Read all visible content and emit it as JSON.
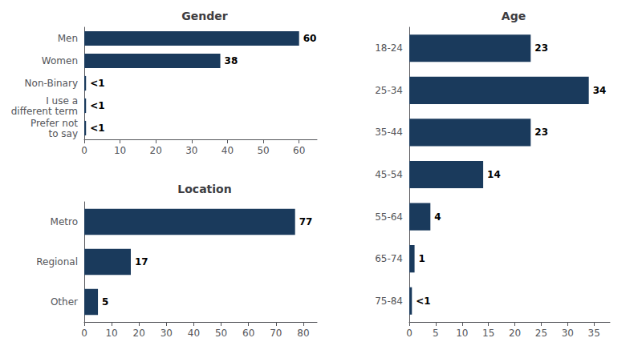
{
  "chart_data": [
    {
      "type": "bar",
      "orientation": "horizontal",
      "title": "Gender",
      "categories": [
        "Men",
        "Women",
        "Non-Binary",
        "I use a\ndifferent term",
        "Prefer not\nto say"
      ],
      "values": [
        60,
        38,
        0.5,
        0.5,
        0.5
      ],
      "value_labels": [
        "60",
        "38",
        "<1",
        "<1",
        "<1"
      ],
      "xlim": [
        0,
        65
      ],
      "xticks": [
        0,
        10,
        20,
        30,
        40,
        50,
        60
      ],
      "color": "#1a3a5c",
      "grid": false
    },
    {
      "type": "bar",
      "orientation": "horizontal",
      "title": "Location",
      "categories": [
        "Metro",
        "Regional",
        "Other"
      ],
      "values": [
        77,
        17,
        5
      ],
      "value_labels": [
        "77",
        "17",
        "5"
      ],
      "xlim": [
        0,
        85
      ],
      "xticks": [
        0,
        10,
        20,
        30,
        40,
        50,
        60,
        70,
        80
      ],
      "color": "#1a3a5c",
      "grid": false
    },
    {
      "type": "bar",
      "orientation": "horizontal",
      "title": "Age",
      "categories": [
        "18-24",
        "25-34",
        "35-44",
        "45-54",
        "55-64",
        "65-74",
        "75-84"
      ],
      "values": [
        23,
        34,
        23,
        14,
        4,
        1,
        0.5
      ],
      "value_labels": [
        "23",
        "34",
        "23",
        "14",
        "4",
        "1",
        "<1"
      ],
      "xlim": [
        0,
        38
      ],
      "xticks": [
        0,
        5,
        10,
        15,
        20,
        25,
        30,
        35
      ],
      "color": "#1a3a5c",
      "grid": false
    }
  ]
}
